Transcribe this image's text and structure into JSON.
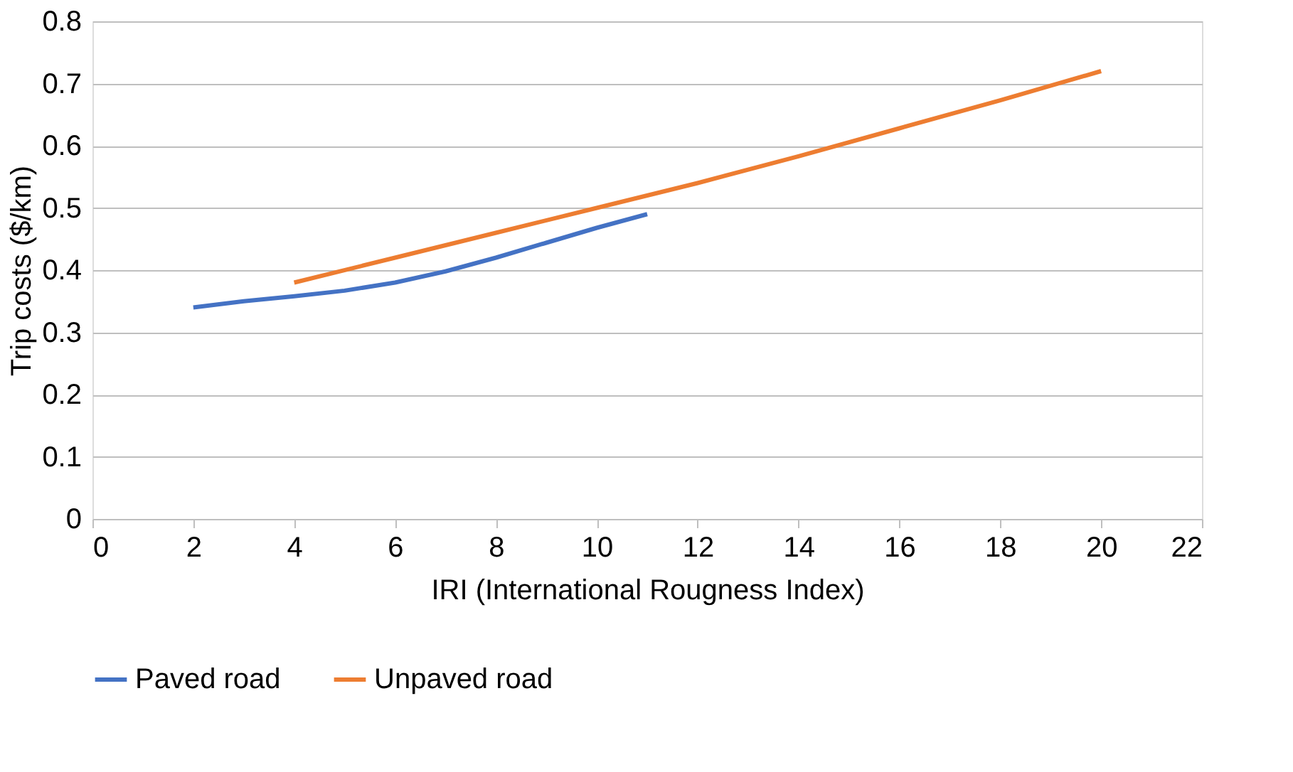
{
  "chart_data": {
    "type": "line",
    "xlabel": "IRI (International Rougness Index)",
    "ylabel": "Trip costs ($/km)",
    "series": [
      {
        "name": "Paved road",
        "color": "#4472c4",
        "x": [
          2,
          3,
          4,
          5,
          6,
          7,
          8,
          9,
          10,
          11
        ],
        "values": [
          0.34,
          0.35,
          0.358,
          0.367,
          0.38,
          0.398,
          0.42,
          0.444,
          0.468,
          0.49
        ]
      },
      {
        "name": "Unpaved road",
        "color": "#ed7d31",
        "x": [
          4,
          6,
          8,
          10,
          12,
          14,
          16,
          18,
          20
        ],
        "values": [
          0.38,
          0.42,
          0.46,
          0.5,
          0.54,
          0.583,
          0.628,
          0.673,
          0.72
        ]
      }
    ],
    "xlim": [
      0,
      22
    ],
    "xticks": [
      0,
      2,
      4,
      6,
      8,
      10,
      12,
      14,
      16,
      18,
      20,
      22
    ],
    "ylim": [
      0,
      0.8
    ],
    "yticks": [
      0,
      0.1,
      0.2,
      0.3,
      0.4,
      0.5,
      0.6,
      0.7,
      0.8
    ],
    "grid": "y",
    "legend": "bottom",
    "marker": "none",
    "line_style": "solid"
  }
}
